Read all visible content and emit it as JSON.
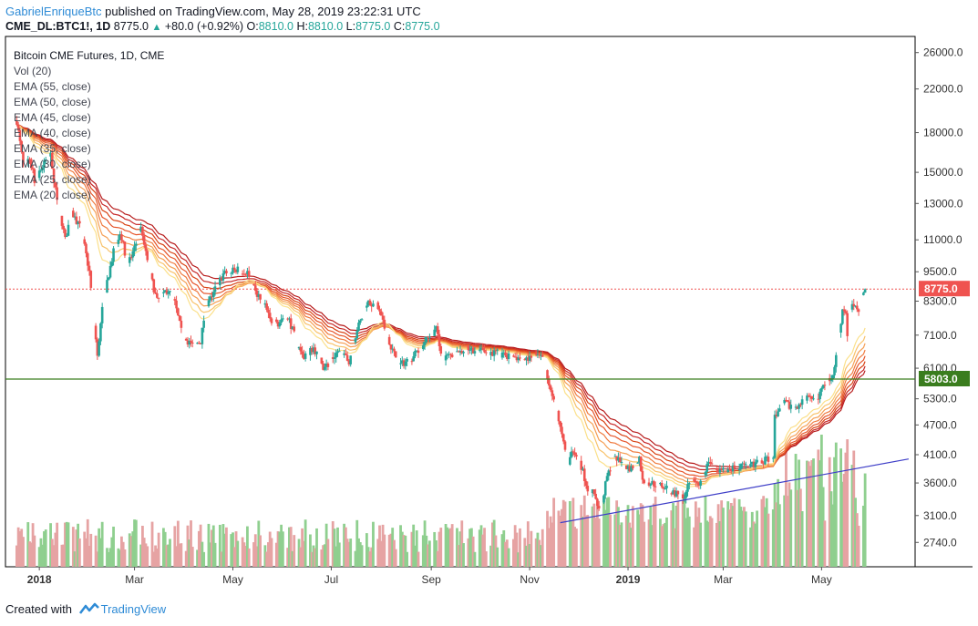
{
  "header": {
    "author": "GabrielEnriqueBtc",
    "published": "published on TradingView.com, May 28, 2019 23:22:31 UTC",
    "symbol_line": "CME_DL:BTC1!, 1D",
    "last": "8775.0",
    "change": "+80.0 (+0.92%)",
    "o_label": "O:",
    "o": "8810.0",
    "h_label": "H:",
    "h": "8810.0",
    "l_label": "L:",
    "l": "8775.0",
    "c_label": "C:",
    "c": "8775.0"
  },
  "legend": {
    "title": "Bitcoin CME Futures, 1D, CME",
    "vol": "Vol (20)",
    "ema": [
      "EMA (55, close)",
      "EMA (50, close)",
      "EMA (45, close)",
      "EMA (40, close)",
      "EMA (35, close)",
      "EMA (30, close)",
      "EMA (25, close)",
      "EMA (20, close)"
    ]
  },
  "footer": {
    "created_with": "Created with",
    "brand": "TradingView"
  },
  "colors": {
    "up": "#26a69a",
    "down": "#ef5350",
    "vol_up": "#8fcf8f",
    "vol_down": "#e6a3a3",
    "ema": [
      "#b71c1c",
      "#c62828",
      "#d84315",
      "#e6552b",
      "#ef7a3e",
      "#f59f55",
      "#f8c26a",
      "#fbe08a"
    ],
    "trendline": "#3f3fc8",
    "support_line": "#3a7d1e",
    "price_line": "#ef5350"
  },
  "chart_data": {
    "type": "candlestick",
    "scale": "log",
    "y_ticks": [
      "26000.0",
      "22000.0",
      "18000.0",
      "15000.0",
      "13000.0",
      "11000.0",
      "9500.0",
      "8300.0",
      "7100.0",
      "6100.0",
      "5300.0",
      "4700.0",
      "4100.0",
      "3600.0",
      "3100.0",
      "2740.0"
    ],
    "x_ticks": [
      "2018",
      "Mar",
      "May",
      "Jul",
      "Sep",
      "Nov",
      "2019",
      "Mar",
      "May"
    ],
    "last_price_label": "8775.0",
    "support_label": "5803.0",
    "support_level": 5803,
    "trendline": {
      "from": [
        "2018-11-20",
        3000
      ],
      "to": [
        "2019-06-24",
        4020
      ]
    },
    "anchors": [
      [
        "2017-12-18",
        19000
      ],
      [
        "2017-12-22",
        15500
      ],
      [
        "2017-12-26",
        16000
      ],
      [
        "2017-12-29",
        14500
      ],
      [
        "2018-01-03",
        15400
      ],
      [
        "2018-01-08",
        16500
      ],
      [
        "2018-01-10",
        14500
      ],
      [
        "2018-01-17",
        11000
      ],
      [
        "2018-01-21",
        12500
      ],
      [
        "2018-01-27",
        11500
      ],
      [
        "2018-02-01",
        9500
      ],
      [
        "2018-02-06",
        6400
      ],
      [
        "2018-02-09",
        8200
      ],
      [
        "2018-02-16",
        10400
      ],
      [
        "2018-02-20",
        11400
      ],
      [
        "2018-02-25",
        9800
      ],
      [
        "2018-03-05",
        11500
      ],
      [
        "2018-03-10",
        9600
      ],
      [
        "2018-03-15",
        8300
      ],
      [
        "2018-03-20",
        8700
      ],
      [
        "2018-03-25",
        8500
      ],
      [
        "2018-03-31",
        7000
      ],
      [
        "2018-04-06",
        6800
      ],
      [
        "2018-04-11",
        6900
      ],
      [
        "2018-04-14",
        8000
      ],
      [
        "2018-04-20",
        8800
      ],
      [
        "2018-04-25",
        9400
      ],
      [
        "2018-05-04",
        9600
      ],
      [
        "2018-05-10",
        9500
      ],
      [
        "2018-05-15",
        8600
      ],
      [
        "2018-05-20",
        8300
      ],
      [
        "2018-05-24",
        7600
      ],
      [
        "2018-05-29",
        7500
      ],
      [
        "2018-06-05",
        7600
      ],
      [
        "2018-06-10",
        6800
      ],
      [
        "2018-06-13",
        6400
      ],
      [
        "2018-06-20",
        6700
      ],
      [
        "2018-06-26",
        6150
      ],
      [
        "2018-06-29",
        6200
      ],
      [
        "2018-07-05",
        6600
      ],
      [
        "2018-07-12",
        6300
      ],
      [
        "2018-07-17",
        7300
      ],
      [
        "2018-07-24",
        8200
      ],
      [
        "2018-07-29",
        8200
      ],
      [
        "2018-08-02",
        7500
      ],
      [
        "2018-08-08",
        6600
      ],
      [
        "2018-08-13",
        6200
      ],
      [
        "2018-08-20",
        6400
      ],
      [
        "2018-08-28",
        6900
      ],
      [
        "2018-09-04",
        7300
      ],
      [
        "2018-09-08",
        6400
      ],
      [
        "2018-09-15",
        6500
      ],
      [
        "2018-09-22",
        6700
      ],
      [
        "2018-10-01",
        6600
      ],
      [
        "2018-10-10",
        6550
      ],
      [
        "2018-10-20",
        6450
      ],
      [
        "2018-10-30",
        6350
      ],
      [
        "2018-11-05",
        6450
      ],
      [
        "2018-11-10",
        6350
      ],
      [
        "2018-11-14",
        5500
      ],
      [
        "2018-11-19",
        4800
      ],
      [
        "2018-11-22",
        4300
      ],
      [
        "2018-11-25",
        3900
      ],
      [
        "2018-11-28",
        4200
      ],
      [
        "2018-12-01",
        4100
      ],
      [
        "2018-12-07",
        3500
      ],
      [
        "2018-12-10",
        3450
      ],
      [
        "2018-12-15",
        3200
      ],
      [
        "2018-12-19",
        3700
      ],
      [
        "2018-12-24",
        4100
      ],
      [
        "2018-12-28",
        3900
      ],
      [
        "2019-01-03",
        3850
      ],
      [
        "2019-01-08",
        4050
      ],
      [
        "2019-01-10",
        3650
      ],
      [
        "2019-01-15",
        3600
      ],
      [
        "2019-01-22",
        3550
      ],
      [
        "2019-01-28",
        3450
      ],
      [
        "2019-02-05",
        3400
      ],
      [
        "2019-02-08",
        3650
      ],
      [
        "2019-02-15",
        3600
      ],
      [
        "2019-02-20",
        3950
      ],
      [
        "2019-02-24",
        3800
      ],
      [
        "2019-03-05",
        3850
      ],
      [
        "2019-03-15",
        3900
      ],
      [
        "2019-03-25",
        3950
      ],
      [
        "2019-04-01",
        4100
      ],
      [
        "2019-04-02",
        4900
      ],
      [
        "2019-04-08",
        5200
      ],
      [
        "2019-04-14",
        5100
      ],
      [
        "2019-04-22",
        5300
      ],
      [
        "2019-04-28",
        5250
      ],
      [
        "2019-05-03",
        5700
      ],
      [
        "2019-05-08",
        5900
      ],
      [
        "2019-05-12",
        7200
      ],
      [
        "2019-05-14",
        8000
      ],
      [
        "2019-05-16",
        7900
      ],
      [
        "2019-05-17",
        7100
      ],
      [
        "2019-05-19",
        8100
      ],
      [
        "2019-05-24",
        8000
      ],
      [
        "2019-05-26",
        8500
      ],
      [
        "2019-05-28",
        8775
      ]
    ]
  }
}
